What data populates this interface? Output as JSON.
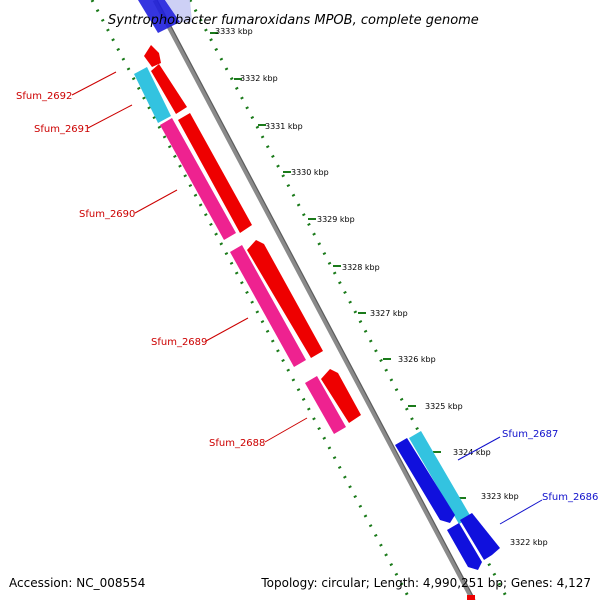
{
  "title": "Syntrophobacter fumaroxidans MPOB, complete genome",
  "footer": {
    "accession": "Accession: NC_008554",
    "summary": "Topology: circular; Length: 4,990,251 bp; Genes: 4,127"
  },
  "colors": {
    "backbone": "#8a8a8a",
    "backbone_dark": "#5a5a5a",
    "ruler": "#1a7a1a",
    "forward_cds": "#ee0000",
    "forward_gene": "#ee2290",
    "reverse_cds": "#1010dd",
    "reverse_gene": "#33c3e0",
    "forward_label": "#cc0000",
    "reverse_label": "#1111cc"
  },
  "ticks": [
    {
      "label": "3333 kbp"
    },
    {
      "label": "3332 kbp"
    },
    {
      "label": "3331 kbp"
    },
    {
      "label": "3330 kbp"
    },
    {
      "label": "3329 kbp"
    },
    {
      "label": "3328 kbp"
    },
    {
      "label": "3327 kbp"
    },
    {
      "label": "3326 kbp"
    },
    {
      "label": "3325 kbp"
    },
    {
      "label": "3324 kbp"
    },
    {
      "label": "3323 kbp"
    },
    {
      "label": "3322 kbp"
    }
  ],
  "gene_labels": {
    "forward": [
      "Sfum_2692",
      "Sfum_2691",
      "Sfum_2690",
      "Sfum_2689",
      "Sfum_2688"
    ],
    "reverse": [
      "Sfum_2687",
      "Sfum_2686"
    ]
  }
}
